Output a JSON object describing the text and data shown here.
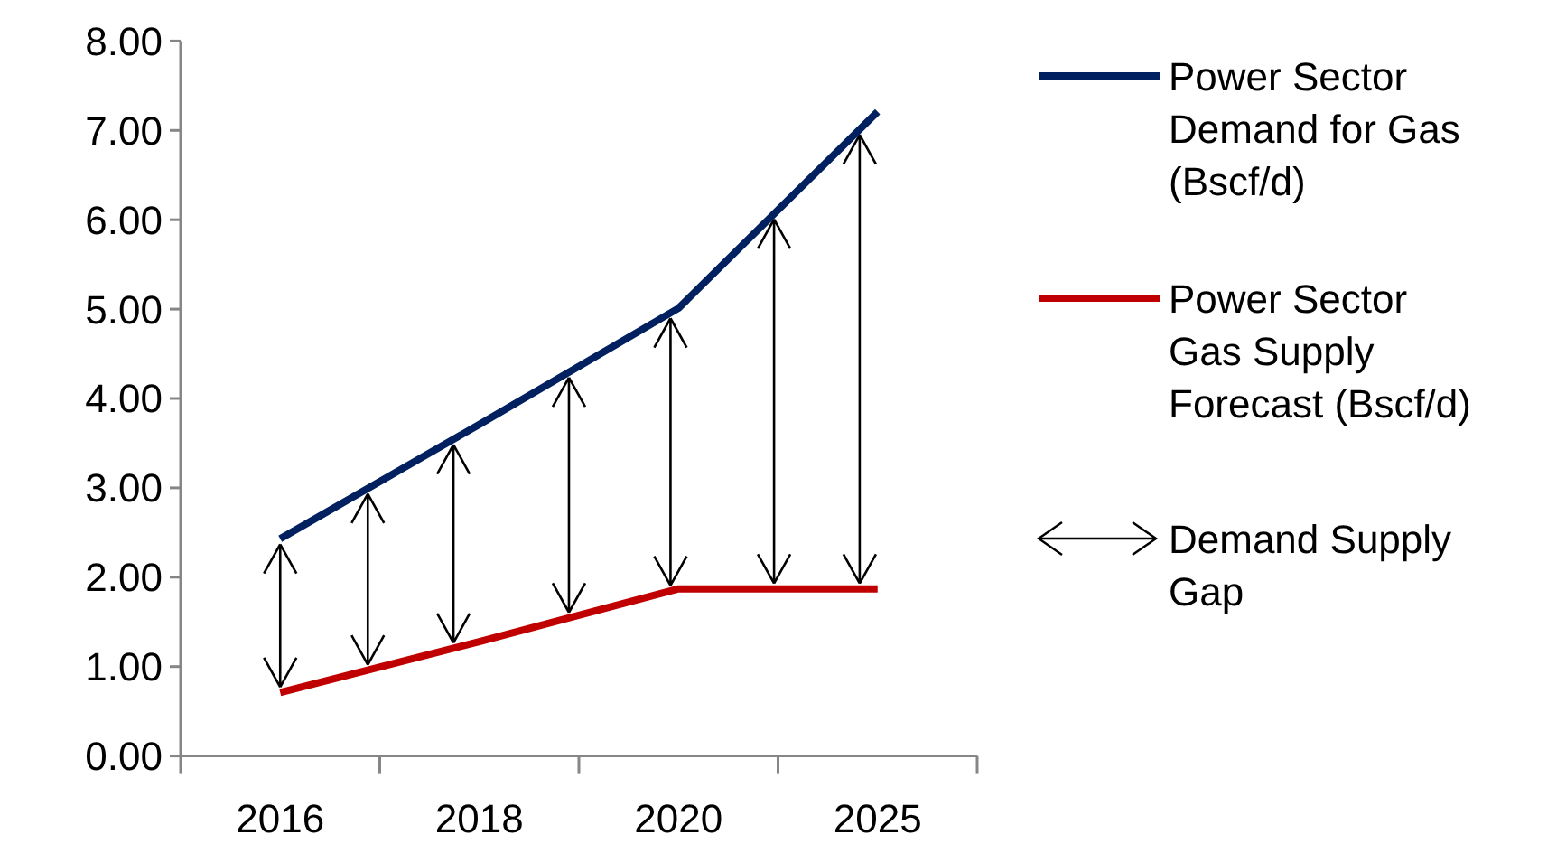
{
  "chart_data": {
    "type": "line",
    "categories": [
      "2016",
      "2018",
      "2020",
      "2025"
    ],
    "series": [
      {
        "name": "Power Sector Demand for Gas (Bscf/d)",
        "color": "#002060",
        "values": [
          2.43,
          3.71,
          5.01,
          7.21
        ]
      },
      {
        "name": "Power Sector Gas Supply Forecast (Bscf/d)",
        "color": "#c00000",
        "values": [
          0.71,
          1.28,
          1.87,
          1.87
        ]
      }
    ],
    "ylim": [
      0,
      8
    ],
    "yticks": [
      {
        "value": 0,
        "label": "0.00"
      },
      {
        "value": 1,
        "label": "1.00"
      },
      {
        "value": 2,
        "label": "2.00"
      },
      {
        "value": 3,
        "label": "3.00"
      },
      {
        "value": 4,
        "label": "4.00"
      },
      {
        "value": 5,
        "label": "5.00"
      },
      {
        "value": 6,
        "label": "6.00"
      },
      {
        "value": 7,
        "label": "7.00"
      },
      {
        "value": 8,
        "label": "8.00"
      }
    ],
    "grid": false,
    "legend": "right",
    "marker": "none",
    "line_style": "solid",
    "annotations": [
      "Demand Supply Gap"
    ]
  }
}
